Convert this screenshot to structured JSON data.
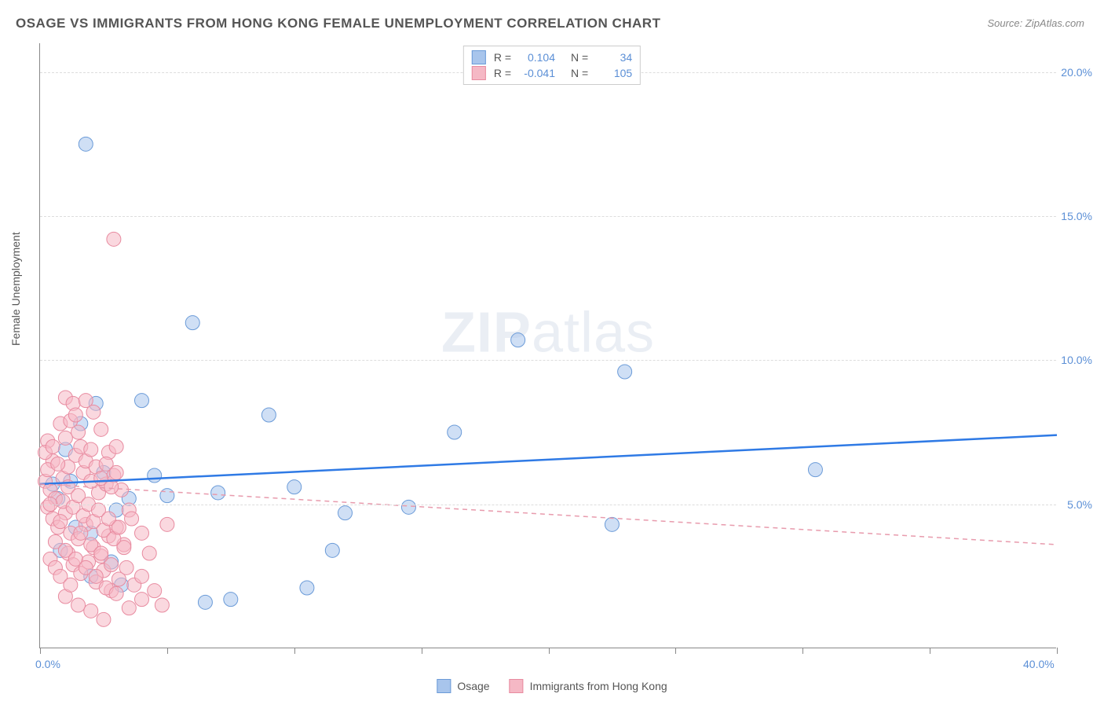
{
  "title": "OSAGE VS IMMIGRANTS FROM HONG KONG FEMALE UNEMPLOYMENT CORRELATION CHART",
  "source": "Source: ZipAtlas.com",
  "y_axis_label": "Female Unemployment",
  "watermark_zip": "ZIP",
  "watermark_atlas": "atlas",
  "chart": {
    "type": "scatter",
    "x_range": [
      0,
      40
    ],
    "y_range": [
      0,
      21
    ],
    "x_ticks": [
      0,
      5,
      10,
      15,
      20,
      25,
      30,
      35,
      40
    ],
    "x_tick_labels": {
      "0": "0.0%",
      "40": "40.0%"
    },
    "y_gridlines": [
      5,
      10,
      15,
      20
    ],
    "y_tick_labels": {
      "5": "5.0%",
      "10": "10.0%",
      "15": "15.0%",
      "20": "20.0%"
    },
    "grid_color": "#dddddd",
    "axis_color": "#888888",
    "background": "#ffffff",
    "point_radius": 9,
    "point_opacity": 0.55,
    "series": [
      {
        "name": "Osage",
        "color_fill": "#a8c5ec",
        "color_stroke": "#6b9bd8",
        "R": "0.104",
        "N": "34",
        "trend": {
          "y_at_x0": 5.7,
          "y_at_x40": 7.4,
          "dash": false,
          "color": "#2f7ae5",
          "width": 2.5
        },
        "points": [
          [
            1.8,
            17.5
          ],
          [
            2.2,
            8.5
          ],
          [
            4.0,
            8.6
          ],
          [
            3.2,
            2.2
          ],
          [
            0.8,
            3.4
          ],
          [
            6.0,
            11.3
          ],
          [
            5.0,
            5.3
          ],
          [
            6.5,
            1.6
          ],
          [
            7.5,
            1.7
          ],
          [
            7.0,
            5.4
          ],
          [
            9.0,
            8.1
          ],
          [
            10.0,
            5.6
          ],
          [
            10.5,
            2.1
          ],
          [
            11.5,
            3.4
          ],
          [
            12.0,
            4.7
          ],
          [
            14.5,
            4.9
          ],
          [
            16.3,
            7.5
          ],
          [
            18.8,
            10.7
          ],
          [
            22.5,
            4.3
          ],
          [
            23.0,
            9.6
          ],
          [
            30.5,
            6.2
          ],
          [
            1.0,
            6.9
          ],
          [
            2.5,
            6.1
          ],
          [
            0.5,
            5.7
          ],
          [
            1.4,
            4.2
          ],
          [
            2.0,
            4.0
          ],
          [
            3.0,
            4.8
          ],
          [
            2.8,
            3.0
          ],
          [
            1.6,
            7.8
          ],
          [
            0.7,
            5.2
          ],
          [
            1.2,
            5.8
          ],
          [
            4.5,
            6.0
          ],
          [
            3.5,
            5.2
          ],
          [
            2.0,
            2.5
          ]
        ]
      },
      {
        "name": "Immigrants from Hong Kong",
        "color_fill": "#f5b8c5",
        "color_stroke": "#e88ba0",
        "R": "-0.041",
        "N": "105",
        "trend": {
          "y_at_x0": 5.7,
          "y_at_x40": 3.6,
          "dash": true,
          "color": "#e89bad",
          "width": 1.5
        },
        "points": [
          [
            2.9,
            14.2
          ],
          [
            0.3,
            7.2
          ],
          [
            0.5,
            6.5
          ],
          [
            0.8,
            7.8
          ],
          [
            1.0,
            8.7
          ],
          [
            1.3,
            8.5
          ],
          [
            1.5,
            7.5
          ],
          [
            1.8,
            8.6
          ],
          [
            2.1,
            8.2
          ],
          [
            2.4,
            7.6
          ],
          [
            2.7,
            6.8
          ],
          [
            3.0,
            7.0
          ],
          [
            0.2,
            5.8
          ],
          [
            0.4,
            5.5
          ],
          [
            0.6,
            5.2
          ],
          [
            0.9,
            5.9
          ],
          [
            1.1,
            6.3
          ],
          [
            1.4,
            6.7
          ],
          [
            1.7,
            6.1
          ],
          [
            2.0,
            5.8
          ],
          [
            2.3,
            5.4
          ],
          [
            2.6,
            5.7
          ],
          [
            2.9,
            6.0
          ],
          [
            3.2,
            5.5
          ],
          [
            3.5,
            4.8
          ],
          [
            0.3,
            4.9
          ],
          [
            0.5,
            4.5
          ],
          [
            0.7,
            4.2
          ],
          [
            1.0,
            4.7
          ],
          [
            1.2,
            4.0
          ],
          [
            1.5,
            3.8
          ],
          [
            1.8,
            4.3
          ],
          [
            2.1,
            3.5
          ],
          [
            2.4,
            3.2
          ],
          [
            2.7,
            3.9
          ],
          [
            3.0,
            4.2
          ],
          [
            3.3,
            3.6
          ],
          [
            3.6,
            4.5
          ],
          [
            4.0,
            4.0
          ],
          [
            4.3,
            3.3
          ],
          [
            0.4,
            3.1
          ],
          [
            0.6,
            2.8
          ],
          [
            0.8,
            2.5
          ],
          [
            1.1,
            3.3
          ],
          [
            1.3,
            2.9
          ],
          [
            1.6,
            2.6
          ],
          [
            1.9,
            3.0
          ],
          [
            2.2,
            2.3
          ],
          [
            2.5,
            2.7
          ],
          [
            2.8,
            2.0
          ],
          [
            3.1,
            2.4
          ],
          [
            3.4,
            2.8
          ],
          [
            3.7,
            2.2
          ],
          [
            4.0,
            2.5
          ],
          [
            4.5,
            2.0
          ],
          [
            1.0,
            1.8
          ],
          [
            1.5,
            1.5
          ],
          [
            2.0,
            1.3
          ],
          [
            2.5,
            1.0
          ],
          [
            3.5,
            1.4
          ],
          [
            4.0,
            1.7
          ],
          [
            4.8,
            1.5
          ],
          [
            5.0,
            4.3
          ],
          [
            0.2,
            6.8
          ],
          [
            0.3,
            6.2
          ],
          [
            0.5,
            7.0
          ],
          [
            0.7,
            6.4
          ],
          [
            0.9,
            5.1
          ],
          [
            1.1,
            5.6
          ],
          [
            1.3,
            4.9
          ],
          [
            1.5,
            5.3
          ],
          [
            1.7,
            4.6
          ],
          [
            1.9,
            5.0
          ],
          [
            2.1,
            4.4
          ],
          [
            2.3,
            4.8
          ],
          [
            2.5,
            4.1
          ],
          [
            2.7,
            4.5
          ],
          [
            2.9,
            3.8
          ],
          [
            3.1,
            4.2
          ],
          [
            3.3,
            3.5
          ],
          [
            1.0,
            7.3
          ],
          [
            1.2,
            7.9
          ],
          [
            1.4,
            8.1
          ],
          [
            1.6,
            7.0
          ],
          [
            1.8,
            6.5
          ],
          [
            2.0,
            6.9
          ],
          [
            2.2,
            6.3
          ],
          [
            2.4,
            5.9
          ],
          [
            2.6,
            6.4
          ],
          [
            2.8,
            5.6
          ],
          [
            3.0,
            6.1
          ],
          [
            0.4,
            5.0
          ],
          [
            0.6,
            3.7
          ],
          [
            0.8,
            4.4
          ],
          [
            1.0,
            3.4
          ],
          [
            1.2,
            2.2
          ],
          [
            1.4,
            3.1
          ],
          [
            1.6,
            4.0
          ],
          [
            1.8,
            2.8
          ],
          [
            2.0,
            3.6
          ],
          [
            2.2,
            2.5
          ],
          [
            2.4,
            3.3
          ],
          [
            2.6,
            2.1
          ],
          [
            2.8,
            2.9
          ],
          [
            3.0,
            1.9
          ]
        ]
      }
    ]
  },
  "legend": {
    "r_label": "R =",
    "n_label": "N ="
  }
}
